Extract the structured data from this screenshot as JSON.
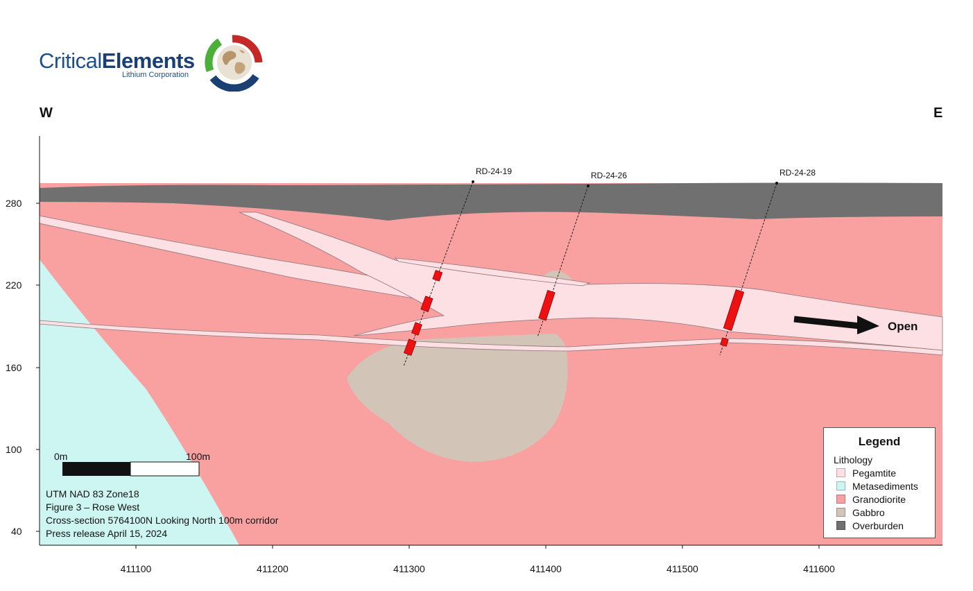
{
  "logo": {
    "name_part1": "Critical",
    "name_part2": "Elements",
    "subtitle": "Lithium Corporation"
  },
  "orientation": {
    "west": "W",
    "east": "E"
  },
  "y_axis": {
    "ticks": [
      "280",
      "220",
      "160",
      "100",
      "40"
    ]
  },
  "x_axis": {
    "ticks": [
      "411100",
      "411200",
      "411300",
      "411400",
      "411500",
      "411600"
    ]
  },
  "drill_holes": [
    {
      "name": "RD-24-19"
    },
    {
      "name": "RD-24-26"
    },
    {
      "name": "RD-24-28"
    }
  ],
  "annotations": {
    "open": "Open"
  },
  "scale_bar": {
    "start": "0m",
    "end": "100m"
  },
  "legend": {
    "title": "Legend",
    "subtitle": "Lithology",
    "items": [
      {
        "label": "Pegamtite",
        "color": "#fde0e4"
      },
      {
        "label": "Metasediments",
        "color": "#cdf5f1"
      },
      {
        "label": "Granodiorite",
        "color": "#f9a0a0"
      },
      {
        "label": "Gabbro",
        "color": "#d2c4b6"
      },
      {
        "label": "Overburden",
        "color": "#707070"
      }
    ]
  },
  "notes": [
    "UTM NAD 83 Zone18",
    "Figure 3 – Rose West",
    "Cross-section 5764100N Looking North 100m corridor",
    "Press release April 15, 2024"
  ],
  "colors": {
    "pegmatite": "#fde0e4",
    "metasediments": "#cdf5f1",
    "granodiorite": "#f9a0a0",
    "gabbro": "#d2c4b6",
    "overburden": "#707070",
    "intercept": "#ee1111"
  }
}
